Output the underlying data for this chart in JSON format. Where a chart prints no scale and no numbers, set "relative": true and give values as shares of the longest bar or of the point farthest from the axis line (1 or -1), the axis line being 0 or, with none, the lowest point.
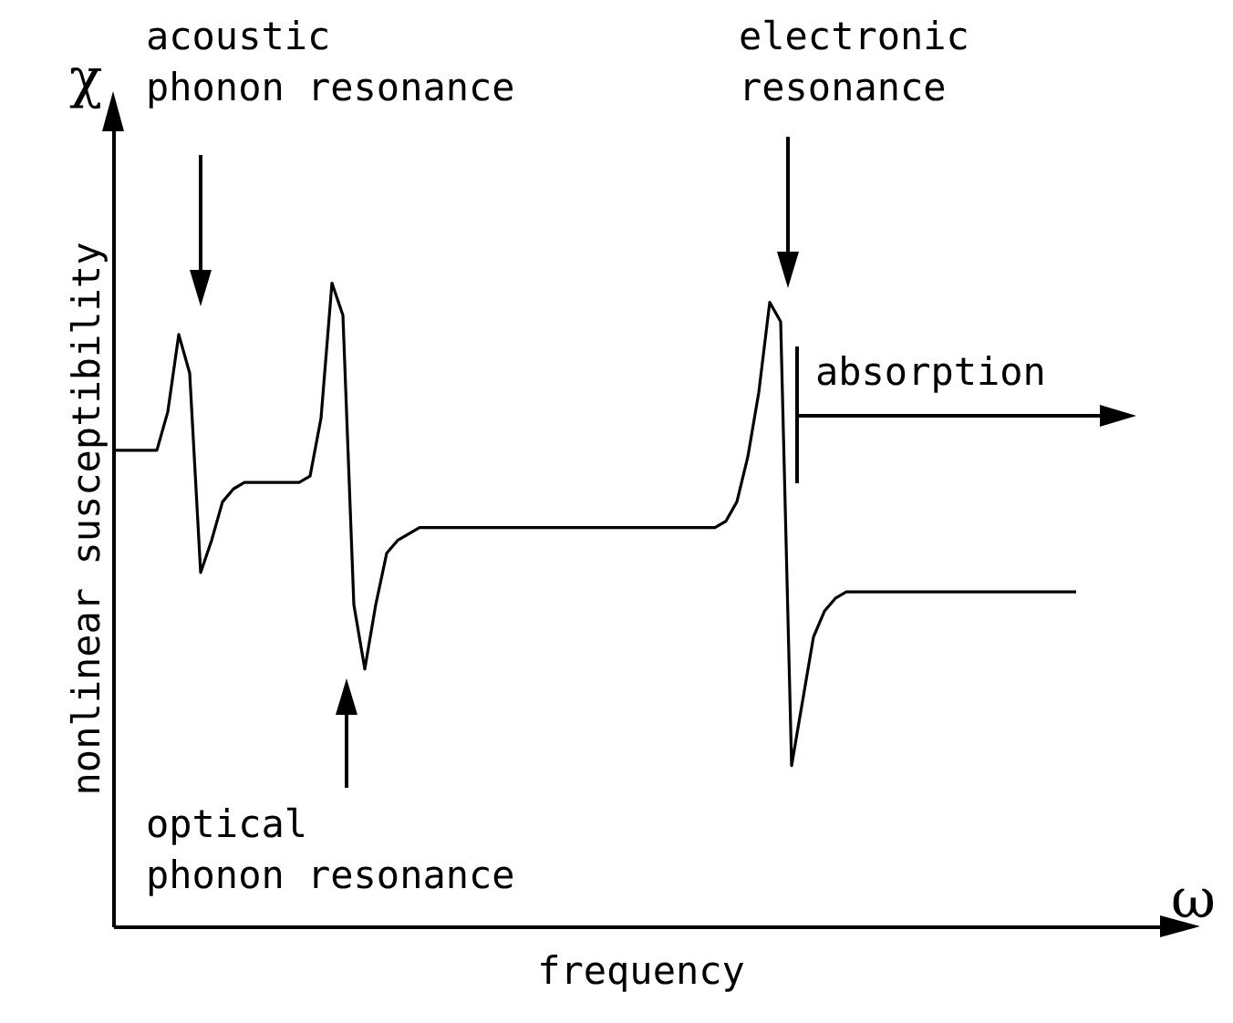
{
  "chart_data": {
    "type": "line",
    "relative": true,
    "xlabel": "frequency",
    "ylabel": "nonlinear susceptibility",
    "grid": false,
    "legend": false,
    "marker": "none",
    "line_style": "solid",
    "tick_labels": false,
    "categories": [
      null,
      null,
      null,
      null,
      null,
      null,
      null,
      null,
      null,
      null,
      null,
      null,
      null,
      null,
      null,
      null,
      null,
      null,
      null,
      null,
      null,
      null,
      null,
      null,
      null,
      null,
      null,
      null,
      null,
      null,
      null,
      null,
      null,
      null,
      null,
      null,
      null,
      null,
      null,
      null,
      null,
      null,
      null,
      null,
      null,
      null,
      null,
      null,
      null,
      null,
      null,
      null,
      null,
      null,
      null,
      null,
      null,
      null,
      null,
      null,
      null,
      null,
      null,
      null,
      null,
      null,
      null,
      null,
      null,
      null,
      null,
      null,
      null,
      null,
      null,
      null,
      null,
      null,
      null,
      null,
      null,
      null,
      null,
      null,
      null,
      null,
      null,
      null,
      null
    ],
    "series": [
      {
        "color": "#000000",
        "values": [
          0.74,
          0.74,
          0.74,
          0.74,
          0.74,
          0.8,
          0.92,
          0.86,
          0.55,
          0.6,
          0.66,
          0.68,
          0.69,
          0.69,
          0.69,
          0.69,
          0.69,
          0.69,
          0.7,
          0.79,
          1,
          0.95,
          0.5,
          0.4,
          0.5,
          0.58,
          0.6,
          0.61,
          0.62,
          0.62,
          0.62,
          0.62,
          0.62,
          0.62,
          0.62,
          0.62,
          0.62,
          0.62,
          0.62,
          0.62,
          0.62,
          0.62,
          0.62,
          0.62,
          0.62,
          0.62,
          0.62,
          0.62,
          0.62,
          0.62,
          0.62,
          0.62,
          0.62,
          0.62,
          0.62,
          0.62,
          0.63,
          0.66,
          0.73,
          0.83,
          0.97,
          0.94,
          0.25,
          0.35,
          0.45,
          0.49,
          0.51,
          0.52,
          0.52,
          0.52,
          0.52,
          0.52,
          0.52,
          0.52,
          0.52,
          0.52,
          0.52,
          0.52,
          0.52,
          0.52,
          0.52,
          0.52,
          0.52,
          0.52,
          0.52,
          0.52,
          0.52,
          0.52,
          0.52
        ]
      }
    ],
    "annotations": [
      "χ",
      "ω",
      "acoustic\nphonon resonance",
      "electronic\nresonance",
      "absorption",
      "optical\nphonon resonance"
    ]
  }
}
